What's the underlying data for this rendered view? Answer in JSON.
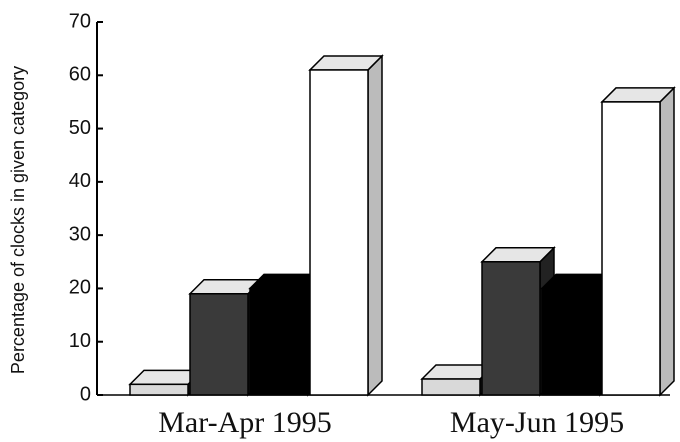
{
  "chart_data": {
    "type": "bar3d",
    "y_label": "Percentage of clocks in given category",
    "categories": [
      "Mar-Apr 1995",
      "May-Jun 1995"
    ],
    "series": [
      {
        "color": "#d9d9d9",
        "values": [
          2,
          3
        ]
      },
      {
        "color": "#3a3a3a",
        "values": [
          19,
          25
        ]
      },
      {
        "color": "#000000",
        "values": [
          20,
          20
        ]
      },
      {
        "color": "#ffffff",
        "values": [
          61,
          55
        ]
      }
    ],
    "ylim": [
      0,
      70
    ],
    "yticks": [
      0,
      10,
      20,
      30,
      40,
      50,
      60,
      70
    ]
  }
}
